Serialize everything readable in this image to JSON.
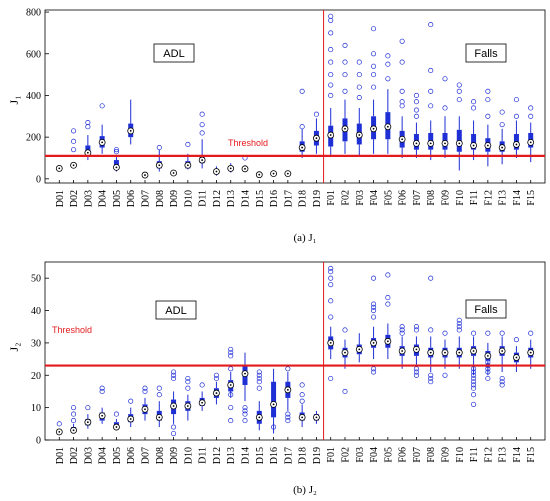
{
  "colors": {
    "box": "#1f2fd6",
    "threshold": "#e31a1c",
    "divider": "#e31a1c",
    "axis": "#000000"
  },
  "chart_data": [
    {
      "type": "box",
      "ylabel": "J₁",
      "ylim": [
        -20,
        810
      ],
      "yticks": [
        0,
        200,
        400,
        600,
        800
      ],
      "grid": false,
      "threshold": 110,
      "threshold_label": "Threshold",
      "region_labels": [
        "ADL",
        "Falls"
      ],
      "divider_after": "D19",
      "caption": "(a) J₁",
      "categories": [
        "D01",
        "D02",
        "D03",
        "D04",
        "D05",
        "D06",
        "D07",
        "D08",
        "D09",
        "D10",
        "D11",
        "D12",
        "D13",
        "D14",
        "D15",
        "D16",
        "D17",
        "D18",
        "D19",
        "F01",
        "F02",
        "F03",
        "F04",
        "F05",
        "F06",
        "F07",
        "F08",
        "F09",
        "F10",
        "F11",
        "F12",
        "F13",
        "F14",
        "F15"
      ],
      "boxes": [
        {
          "min": 40,
          "q1": 45,
          "median": 50,
          "q3": 55,
          "max": 60,
          "outliers": []
        },
        {
          "min": 55,
          "q1": 60,
          "median": 65,
          "q3": 75,
          "max": 80,
          "outliers": [
            140,
            180,
            230
          ]
        },
        {
          "min": 90,
          "q1": 110,
          "median": 125,
          "q3": 160,
          "max": 210,
          "outliers": [
            250,
            270
          ]
        },
        {
          "min": 120,
          "q1": 150,
          "median": 175,
          "q3": 205,
          "max": 260,
          "outliers": [
            350
          ]
        },
        {
          "min": 35,
          "q1": 45,
          "median": 55,
          "q3": 90,
          "max": 110,
          "outliers": [
            130,
            140
          ]
        },
        {
          "min": 165,
          "q1": 200,
          "median": 230,
          "q3": 265,
          "max": 380,
          "outliers": []
        },
        {
          "min": 12,
          "q1": 15,
          "median": 18,
          "q3": 22,
          "max": 25,
          "outliers": []
        },
        {
          "min": 35,
          "q1": 50,
          "median": 65,
          "q3": 85,
          "max": 140,
          "outliers": [
            150
          ]
        },
        {
          "min": 22,
          "q1": 25,
          "median": 28,
          "q3": 32,
          "max": 38,
          "outliers": []
        },
        {
          "min": 45,
          "q1": 50,
          "median": 65,
          "q3": 85,
          "max": 120,
          "outliers": [
            165
          ]
        },
        {
          "min": 50,
          "q1": 75,
          "median": 90,
          "q3": 110,
          "max": 190,
          "outliers": [
            220,
            260,
            310
          ]
        },
        {
          "min": 15,
          "q1": 25,
          "median": 35,
          "q3": 45,
          "max": 60,
          "outliers": []
        },
        {
          "min": 30,
          "q1": 40,
          "median": 50,
          "q3": 60,
          "max": 75,
          "outliers": []
        },
        {
          "min": 35,
          "q1": 40,
          "median": 48,
          "q3": 55,
          "max": 65,
          "outliers": [
            100
          ]
        },
        {
          "min": 10,
          "q1": 15,
          "median": 20,
          "q3": 26,
          "max": 35,
          "outliers": []
        },
        {
          "min": 15,
          "q1": 20,
          "median": 25,
          "q3": 30,
          "max": 40,
          "outliers": []
        },
        {
          "min": 15,
          "q1": 20,
          "median": 25,
          "q3": 30,
          "max": 40,
          "outliers": []
        },
        {
          "min": 100,
          "q1": 130,
          "median": 150,
          "q3": 180,
          "max": 240,
          "outliers": [
            250,
            420
          ]
        },
        {
          "min": 120,
          "q1": 160,
          "median": 195,
          "q3": 230,
          "max": 290,
          "outliers": [
            310
          ]
        },
        {
          "min": 110,
          "q1": 155,
          "median": 210,
          "q3": 255,
          "max": 340,
          "outliers": [
            400,
            450,
            500,
            560,
            620,
            700,
            760,
            780
          ]
        },
        {
          "min": 120,
          "q1": 180,
          "median": 240,
          "q3": 290,
          "max": 380,
          "outliers": [
            420,
            500,
            560,
            640
          ]
        },
        {
          "min": 110,
          "q1": 165,
          "median": 210,
          "q3": 265,
          "max": 340,
          "outliers": [
            390,
            440,
            500,
            560
          ]
        },
        {
          "min": 120,
          "q1": 190,
          "median": 240,
          "q3": 300,
          "max": 380,
          "outliers": [
            440,
            500,
            540,
            600,
            720
          ]
        },
        {
          "min": 120,
          "q1": 190,
          "median": 250,
          "q3": 320,
          "max": 430,
          "outliers": [
            480,
            550,
            590
          ]
        },
        {
          "min": 100,
          "q1": 150,
          "median": 190,
          "q3": 230,
          "max": 300,
          "outliers": [
            350,
            370,
            420,
            560,
            660
          ]
        },
        {
          "min": 100,
          "q1": 140,
          "median": 170,
          "q3": 215,
          "max": 270,
          "outliers": [
            300,
            330,
            370,
            400
          ]
        },
        {
          "min": 90,
          "q1": 140,
          "median": 170,
          "q3": 220,
          "max": 280,
          "outliers": [
            350,
            420,
            520,
            740
          ]
        },
        {
          "min": 100,
          "q1": 140,
          "median": 170,
          "q3": 220,
          "max": 300,
          "outliers": [
            340,
            480
          ]
        },
        {
          "min": 40,
          "q1": 130,
          "median": 170,
          "q3": 235,
          "max": 300,
          "outliers": [
            380,
            420,
            450
          ]
        },
        {
          "min": 90,
          "q1": 140,
          "median": 160,
          "q3": 215,
          "max": 280,
          "outliers": [
            340,
            370
          ]
        },
        {
          "min": 60,
          "q1": 130,
          "median": 160,
          "q3": 195,
          "max": 260,
          "outliers": [
            300,
            380,
            420
          ]
        },
        {
          "min": 70,
          "q1": 130,
          "median": 150,
          "q3": 180,
          "max": 240,
          "outliers": [
            260,
            320
          ]
        },
        {
          "min": 100,
          "q1": 140,
          "median": 165,
          "q3": 215,
          "max": 280,
          "outliers": [
            300,
            380
          ]
        },
        {
          "min": 80,
          "q1": 150,
          "median": 175,
          "q3": 220,
          "max": 270,
          "outliers": [
            300,
            340
          ]
        }
      ]
    },
    {
      "type": "box",
      "ylabel": "J₂",
      "ylim": [
        0,
        55
      ],
      "yticks": [
        0,
        10,
        20,
        30,
        40,
        50
      ],
      "grid": false,
      "threshold": 23,
      "threshold_label": "Threshold",
      "region_labels": [
        "ADL",
        "Falls"
      ],
      "divider_after": "D19",
      "caption": "(b) J₂",
      "categories": [
        "D01",
        "D02",
        "D03",
        "D04",
        "D05",
        "D06",
        "D07",
        "D08",
        "D09",
        "D10",
        "D11",
        "D12",
        "D13",
        "D14",
        "D15",
        "D16",
        "D17",
        "D18",
        "D19",
        "F01",
        "F02",
        "F03",
        "F04",
        "F05",
        "F06",
        "F07",
        "F08",
        "F09",
        "F10",
        "F11",
        "F12",
        "F13",
        "F14",
        "F15"
      ],
      "boxes": [
        {
          "min": 1.5,
          "q1": 2,
          "median": 2.5,
          "q3": 3,
          "max": 3.5,
          "outliers": [
            5
          ]
        },
        {
          "min": 2,
          "q1": 2.5,
          "median": 3,
          "q3": 4,
          "max": 5,
          "outliers": [
            6,
            8,
            10
          ]
        },
        {
          "min": 3.5,
          "q1": 4.5,
          "median": 5.5,
          "q3": 6.5,
          "max": 8,
          "outliers": [
            10
          ]
        },
        {
          "min": 5,
          "q1": 6,
          "median": 7.5,
          "q3": 8.5,
          "max": 10,
          "outliers": [
            15,
            16
          ]
        },
        {
          "min": 3,
          "q1": 3.5,
          "median": 4,
          "q3": 5.5,
          "max": 6.5,
          "outliers": [
            8
          ]
        },
        {
          "min": 4,
          "q1": 5.5,
          "median": 6.5,
          "q3": 8,
          "max": 10,
          "outliers": [
            12
          ]
        },
        {
          "min": 6,
          "q1": 8,
          "median": 9.5,
          "q3": 11,
          "max": 13,
          "outliers": [
            15,
            16
          ]
        },
        {
          "min": 4,
          "q1": 6,
          "median": 7,
          "q3": 9,
          "max": 12,
          "outliers": [
            14,
            16
          ]
        },
        {
          "min": 5,
          "q1": 8,
          "median": 10.5,
          "q3": 12.5,
          "max": 15,
          "outliers": [
            2,
            4,
            19,
            20,
            21
          ]
        },
        {
          "min": 6,
          "q1": 9,
          "median": 10.5,
          "q3": 12,
          "max": 14,
          "outliers": [
            16,
            18,
            19
          ]
        },
        {
          "min": 9,
          "q1": 10.5,
          "median": 11.5,
          "q3": 13,
          "max": 15,
          "outliers": [
            17
          ]
        },
        {
          "min": 11,
          "q1": 13,
          "median": 14.5,
          "q3": 16,
          "max": 18,
          "outliers": [
            19,
            20
          ]
        },
        {
          "min": 13,
          "q1": 15,
          "median": 17,
          "q3": 18.5,
          "max": 21,
          "outliers": [
            6,
            10,
            14,
            22,
            26,
            27,
            28
          ]
        },
        {
          "min": 12,
          "q1": 17,
          "median": 20.5,
          "q3": 23,
          "max": 27,
          "outliers": [
            6,
            8,
            9,
            10
          ]
        },
        {
          "min": 3,
          "q1": 5,
          "median": 7,
          "q3": 9,
          "max": 12,
          "outliers": [
            16,
            18,
            19,
            20,
            21
          ]
        },
        {
          "min": 2,
          "q1": 7,
          "median": 11,
          "q3": 18,
          "max": 22,
          "outliers": [
            4,
            8
          ]
        },
        {
          "min": 9,
          "q1": 13,
          "median": 15.5,
          "q3": 18,
          "max": 21,
          "outliers": [
            6,
            7,
            8,
            22
          ]
        },
        {
          "min": 4,
          "q1": 6,
          "median": 7,
          "q3": 8.5,
          "max": 11,
          "outliers": [
            12,
            14,
            17
          ]
        },
        {
          "min": 5,
          "q1": 6,
          "median": 7,
          "q3": 8,
          "max": 9,
          "outliers": []
        },
        {
          "min": 25,
          "q1": 28,
          "median": 30,
          "q3": 32,
          "max": 35,
          "outliers": [
            19,
            38,
            43,
            48,
            50,
            52,
            53
          ]
        },
        {
          "min": 22,
          "q1": 25.5,
          "median": 27,
          "q3": 28.5,
          "max": 31,
          "outliers": [
            15,
            34
          ]
        },
        {
          "min": 24,
          "q1": 26.5,
          "median": 28,
          "q3": 29.5,
          "max": 33,
          "outliers": []
        },
        {
          "min": 25,
          "q1": 28.5,
          "median": 30,
          "q3": 31.5,
          "max": 35,
          "outliers": [
            21,
            22,
            38,
            40,
            41,
            42,
            50
          ]
        },
        {
          "min": 25,
          "q1": 28.5,
          "median": 30.5,
          "q3": 32.5,
          "max": 36,
          "outliers": [
            42,
            44,
            51
          ]
        },
        {
          "min": 22,
          "q1": 26,
          "median": 27.5,
          "q3": 29,
          "max": 32,
          "outliers": [
            33,
            34,
            35
          ]
        },
        {
          "min": 23,
          "q1": 26,
          "median": 28,
          "q3": 29.5,
          "max": 32,
          "outliers": [
            20,
            21,
            22,
            34,
            35
          ]
        },
        {
          "min": 21,
          "q1": 25.5,
          "median": 27,
          "q3": 28.5,
          "max": 32,
          "outliers": [
            18,
            19,
            20,
            34,
            50
          ]
        },
        {
          "min": 22,
          "q1": 25.5,
          "median": 27,
          "q3": 28.5,
          "max": 31,
          "outliers": [
            20,
            33
          ]
        },
        {
          "min": 22,
          "q1": 25.5,
          "median": 27,
          "q3": 28.5,
          "max": 32,
          "outliers": [
            34,
            35,
            36,
            37
          ]
        },
        {
          "min": 20,
          "q1": 26,
          "median": 27.5,
          "q3": 29,
          "max": 32,
          "outliers": [
            11,
            14,
            16,
            17,
            18,
            19,
            20,
            21,
            22,
            33
          ]
        },
        {
          "min": 20,
          "q1": 24.5,
          "median": 26,
          "q3": 27.5,
          "max": 30,
          "outliers": [
            19,
            21,
            22,
            23,
            24,
            33
          ]
        },
        {
          "min": 21,
          "q1": 26,
          "median": 27.5,
          "q3": 29,
          "max": 32,
          "outliers": [
            17,
            18,
            19,
            33
          ]
        },
        {
          "min": 21,
          "q1": 24,
          "median": 25.5,
          "q3": 27,
          "max": 29,
          "outliers": [
            31
          ]
        },
        {
          "min": 22,
          "q1": 25.5,
          "median": 27,
          "q3": 28.5,
          "max": 31,
          "outliers": [
            33
          ]
        }
      ]
    }
  ]
}
